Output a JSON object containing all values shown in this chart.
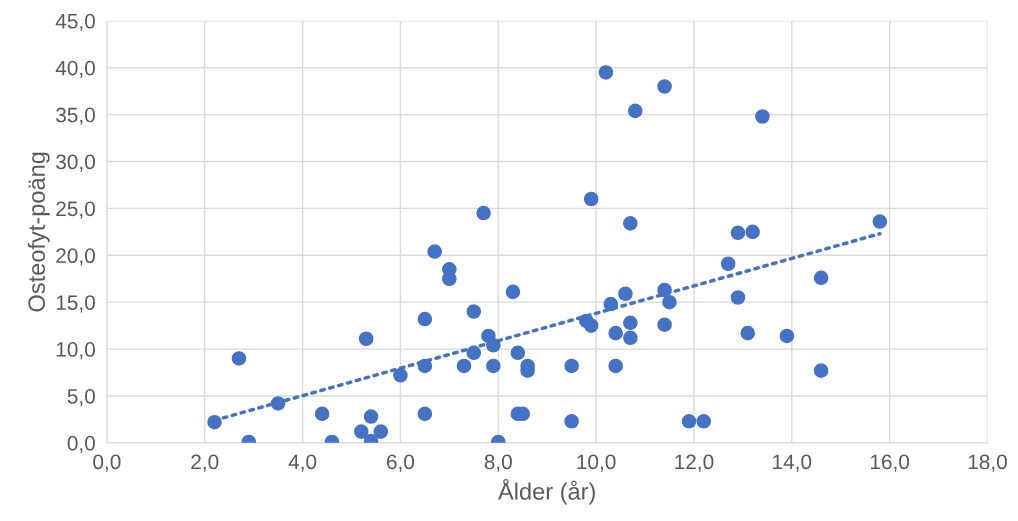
{
  "chart_data": {
    "type": "scatter",
    "xlabel": "Ålder (år)",
    "ylabel": "Osteofyt-poäng",
    "grid": true,
    "marker": "circle",
    "xlim": [
      0,
      18
    ],
    "ylim": [
      0,
      45
    ],
    "xticks": [
      {
        "value": 0,
        "label": "0,0"
      },
      {
        "value": 2,
        "label": "2,0"
      },
      {
        "value": 4,
        "label": "4,0"
      },
      {
        "value": 6,
        "label": "6,0"
      },
      {
        "value": 8,
        "label": "8,0"
      },
      {
        "value": 10,
        "label": "10,0"
      },
      {
        "value": 12,
        "label": "12,0"
      },
      {
        "value": 14,
        "label": "14,0"
      },
      {
        "value": 16,
        "label": "16,0"
      },
      {
        "value": 18,
        "label": "18,0"
      }
    ],
    "yticks": [
      {
        "value": 0,
        "label": "0,0"
      },
      {
        "value": 5,
        "label": "5,0"
      },
      {
        "value": 10,
        "label": "10,0"
      },
      {
        "value": 15,
        "label": "15,0"
      },
      {
        "value": 20,
        "label": "20,0"
      },
      {
        "value": 25,
        "label": "25,0"
      },
      {
        "value": 30,
        "label": "30,0"
      },
      {
        "value": 35,
        "label": "35,0"
      },
      {
        "value": 40,
        "label": "40,0"
      },
      {
        "value": 45,
        "label": "45,0"
      }
    ],
    "series": [
      {
        "color": "#4472c4",
        "x": [
          2.2,
          2.7,
          2.9,
          3.5,
          4.4,
          4.6,
          5.2,
          5.3,
          5.4,
          5.4,
          5.6,
          6.0,
          6.5,
          6.5,
          6.5,
          6.7,
          7.0,
          7.0,
          7.3,
          7.5,
          7.5,
          7.7,
          7.8,
          7.9,
          7.9,
          8.0,
          8.3,
          8.4,
          8.4,
          8.5,
          8.6,
          8.6,
          9.5,
          9.5,
          9.8,
          9.9,
          9.9,
          10.2,
          10.3,
          10.4,
          10.4,
          10.6,
          10.7,
          10.7,
          10.7,
          10.8,
          11.4,
          11.4,
          11.4,
          11.5,
          11.9,
          12.2,
          12.7,
          12.9,
          12.9,
          13.1,
          13.2,
          13.4,
          13.9,
          14.6,
          14.6,
          15.8
        ],
        "values": [
          2.2,
          9.0,
          0.1,
          4.2,
          3.1,
          0.1,
          1.2,
          11.1,
          2.8,
          0.2,
          1.2,
          7.2,
          13.2,
          8.2,
          3.1,
          20.4,
          18.5,
          17.5,
          8.2,
          14.0,
          9.6,
          24.5,
          11.4,
          10.4,
          8.2,
          0.1,
          16.1,
          9.6,
          3.1,
          3.1,
          8.2,
          7.7,
          8.2,
          2.3,
          13.0,
          26.0,
          12.5,
          39.5,
          14.8,
          11.7,
          8.2,
          15.9,
          23.4,
          12.8,
          11.2,
          35.4,
          38.0,
          16.3,
          12.6,
          15.0,
          2.3,
          2.3,
          19.1,
          22.4,
          15.5,
          11.7,
          22.5,
          34.8,
          11.4,
          17.6,
          7.7,
          23.6
        ]
      },
      {
        "type": "line",
        "color": "#4472c4",
        "line_style": "dotted",
        "marker": "none",
        "x": [
          2.2,
          15.8
        ],
        "values": [
          2.4,
          22.3
        ]
      }
    ]
  }
}
